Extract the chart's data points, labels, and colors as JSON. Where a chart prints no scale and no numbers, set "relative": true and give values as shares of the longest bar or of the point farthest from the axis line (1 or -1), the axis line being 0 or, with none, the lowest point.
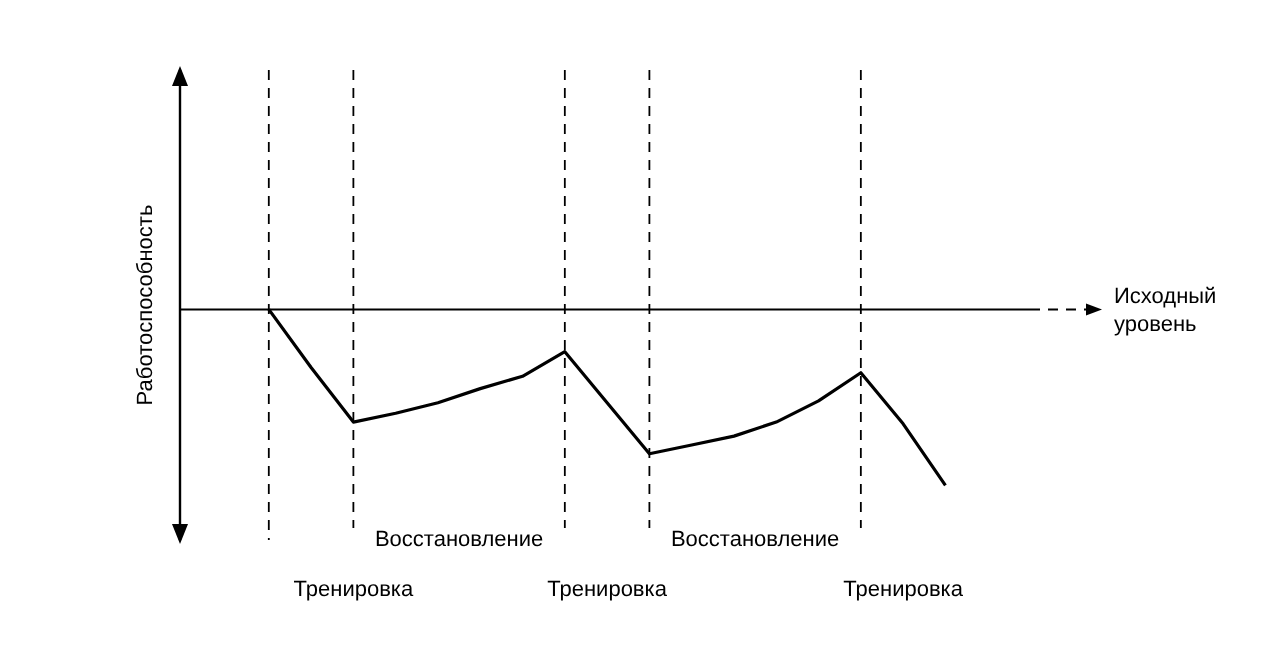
{
  "chart_data": {
    "type": "line",
    "relative": true,
    "ylabel": "Работоспособность",
    "categories": [
      null,
      null,
      "Тренировка",
      null,
      null,
      null,
      null,
      null,
      "Тренировка",
      null,
      null,
      null,
      null,
      null,
      null,
      "Тренировка",
      null
    ],
    "series": [
      {
        "color": "#000000",
        "values": [
          0,
          -0.33,
          -0.64,
          -0.59,
          -0.53,
          -0.45,
          -0.38,
          -0.24,
          -0.53,
          -0.82,
          -0.77,
          -0.72,
          -0.64,
          -0.52,
          -0.36,
          -0.65,
          -1
        ]
      }
    ],
    "ref_lines": [
      {
        "axis": "y",
        "value": 0,
        "label": "Исходный уровень",
        "line_style": "solid"
      }
    ],
    "annotations": [
      "Восстановление",
      "Восстановление"
    ],
    "marker": "none",
    "line_style": "solid",
    "grid": "x",
    "legend": false
  }
}
